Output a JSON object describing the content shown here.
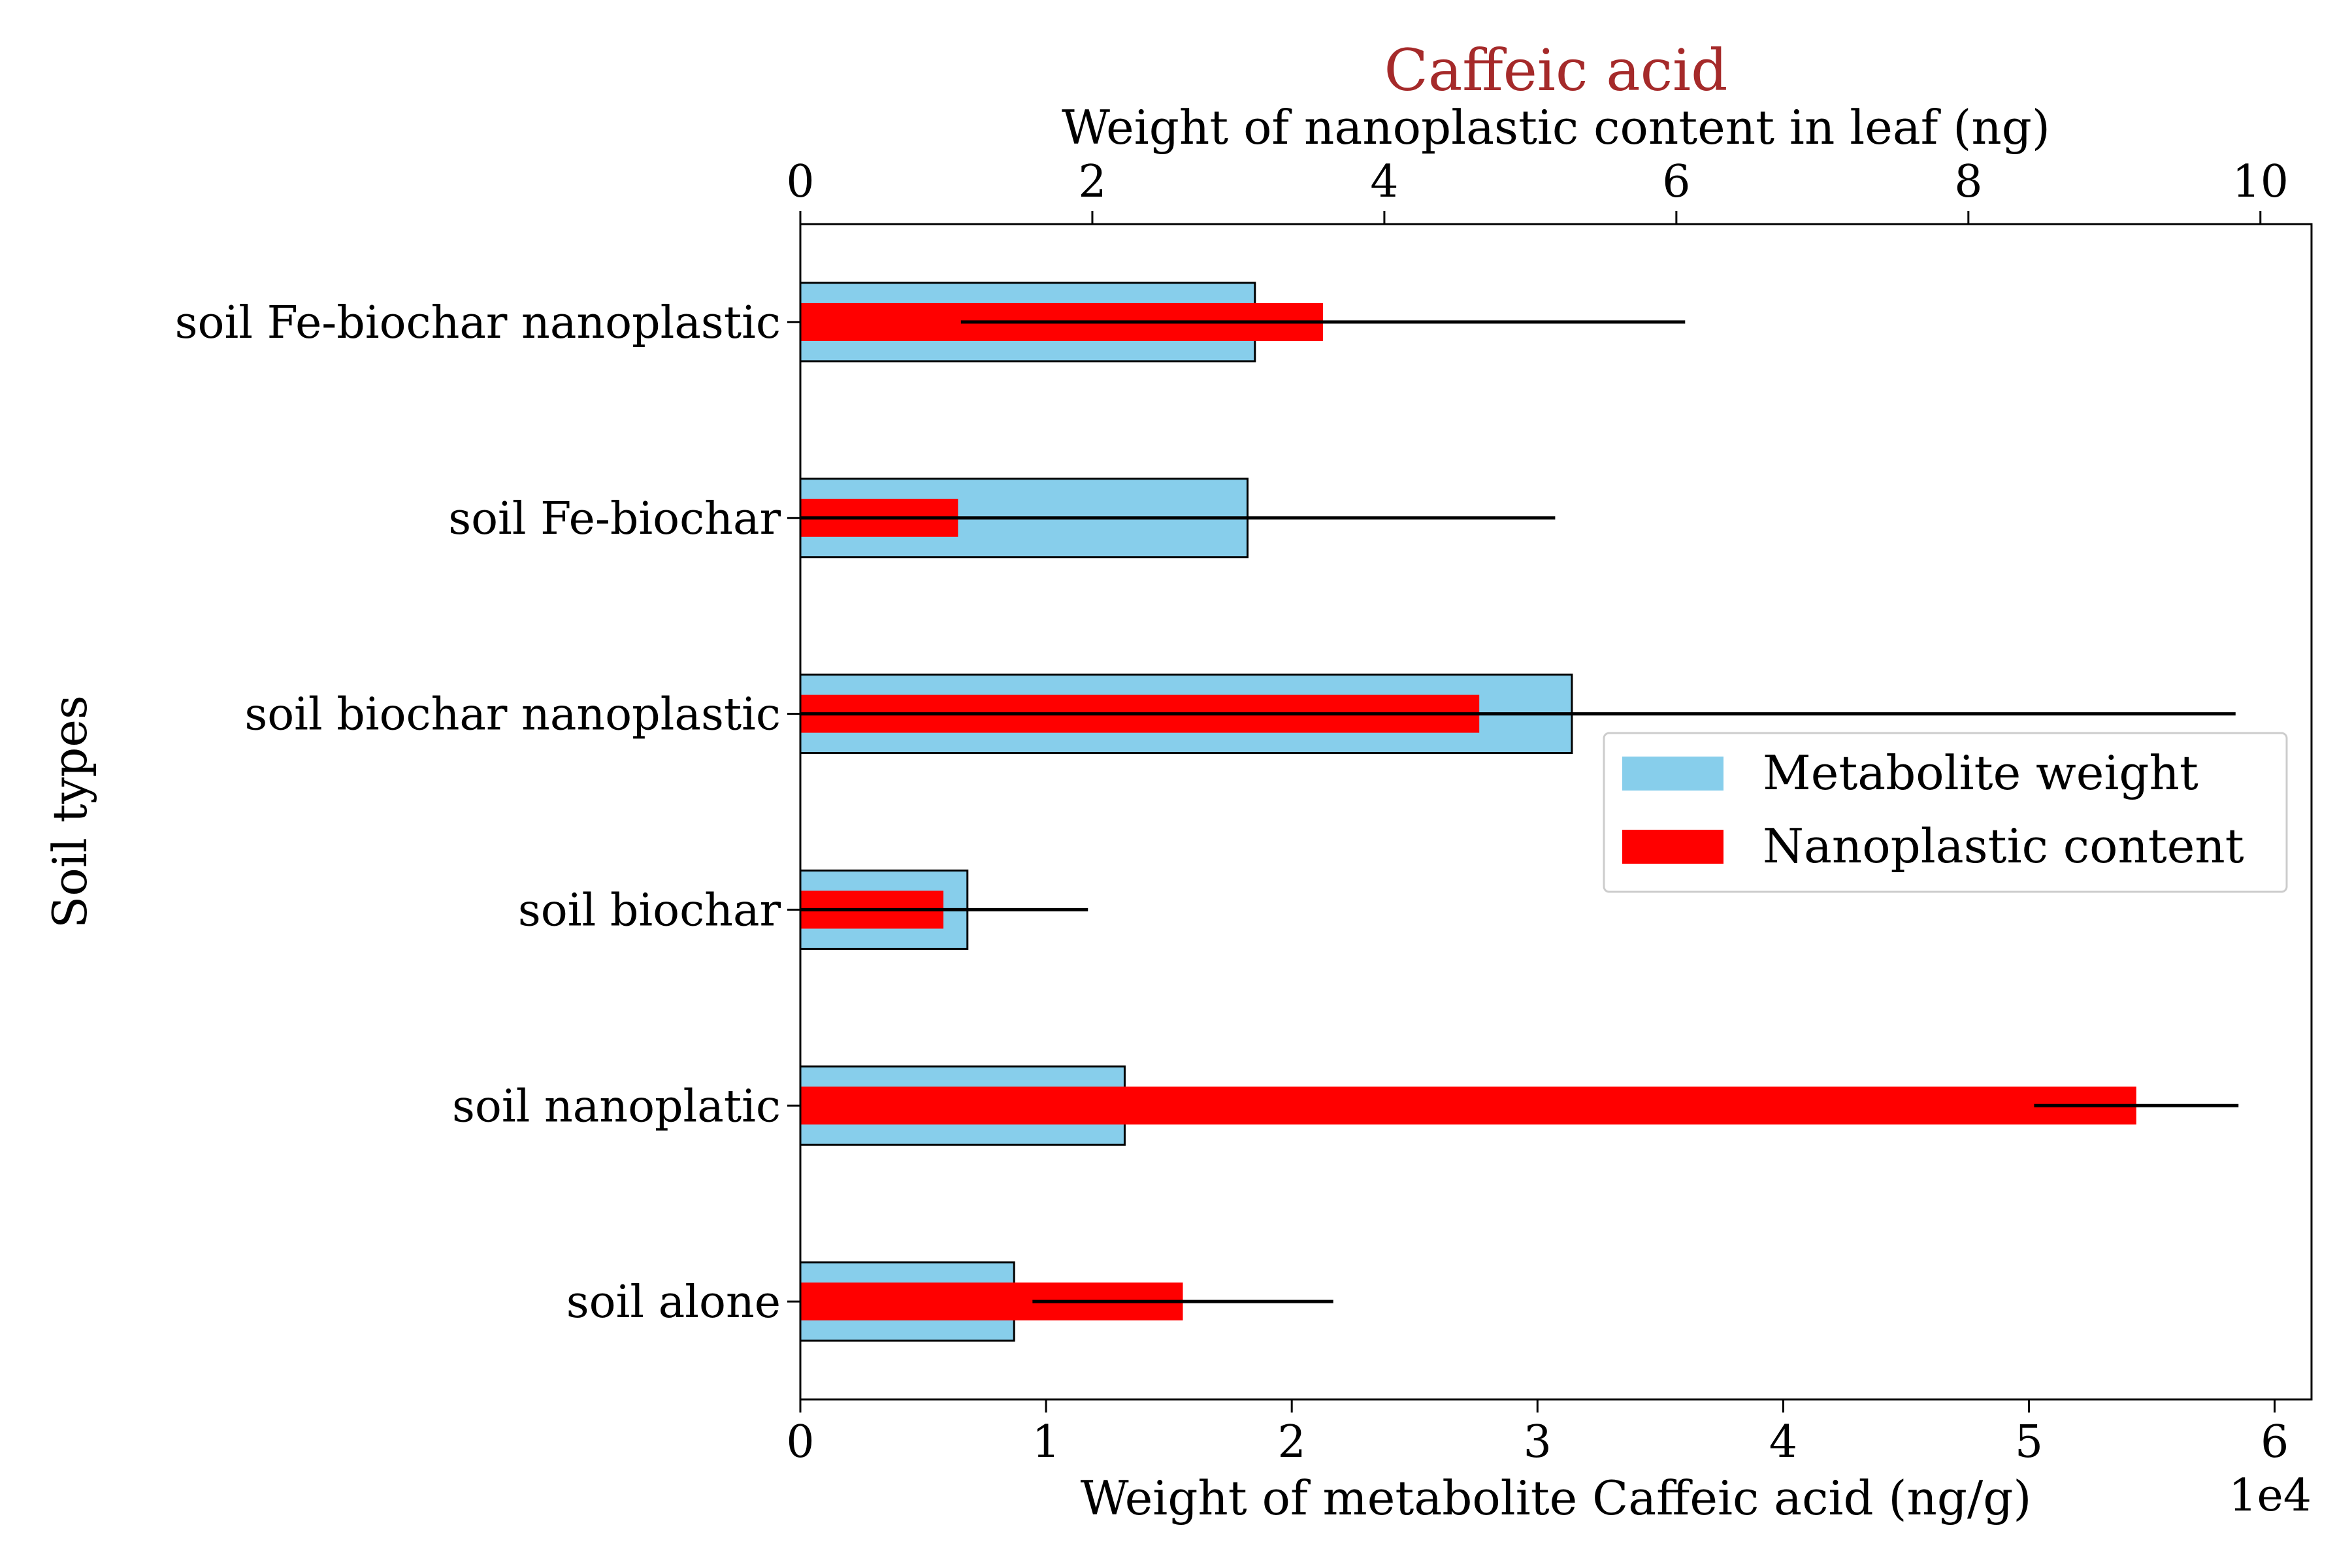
{
  "chart_data": {
    "type": "bar",
    "orientation": "horizontal",
    "title": "Caffeic acid",
    "title_color": "#a52a2a",
    "ylabel": "Soil types",
    "categories": [
      "soil Fe-biochar nanoplastic",
      "soil Fe-biochar",
      "soil biochar nanoplastic",
      "soil biochar",
      "soil nanoplatic",
      "soil alone"
    ],
    "bottom_axis": {
      "label": "Weight of metabolite Caffeic acid (ng/g)",
      "range": [
        0,
        61500
      ],
      "ticks": [
        0,
        10000,
        20000,
        30000,
        40000,
        50000,
        60000
      ],
      "tick_labels": [
        "0",
        "1",
        "2",
        "3",
        "4",
        "5",
        "6"
      ],
      "offset_text": "1e4"
    },
    "top_axis": {
      "label": "Weight of nanoplastic content in leaf (ng)",
      "range": [
        0,
        10.35
      ],
      "ticks": [
        0,
        2,
        4,
        6,
        8,
        10
      ],
      "tick_labels": [
        "0",
        "2",
        "4",
        "6",
        "8",
        "10"
      ]
    },
    "series": [
      {
        "name": "Metabolite weight",
        "axis": "bottom",
        "color": "#87ceeb",
        "edge_color": "#000000",
        "values": [
          18500,
          18200,
          31400,
          6800,
          13200,
          8700
        ]
      },
      {
        "name": "Nanoplastic content",
        "axis": "top",
        "color": "#ff0000",
        "values": [
          3.58,
          1.08,
          4.65,
          0.98,
          9.15,
          2.62
        ],
        "error": [
          2.48,
          4.09,
          5.18,
          0.99,
          0.7,
          1.03
        ]
      }
    ],
    "legend": {
      "position": "right"
    }
  }
}
